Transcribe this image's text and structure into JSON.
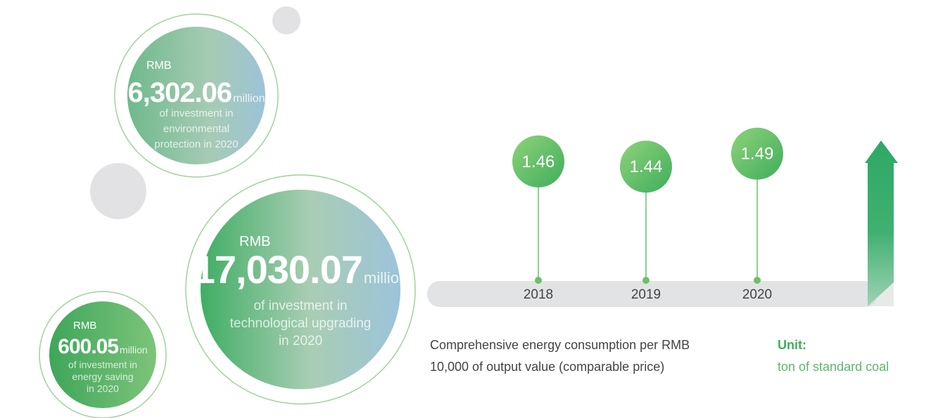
{
  "circles": [
    {
      "prefix": "RMB",
      "amount": "6,302.06",
      "unit": "million",
      "desc": [
        "of investment in",
        "environmental",
        "protection in 2020"
      ]
    },
    {
      "prefix": "RMB",
      "amount": "17,030.07",
      "unit": "million",
      "desc": [
        "of investment in",
        "technological upgrading",
        "in 2020"
      ]
    },
    {
      "prefix": "RMB",
      "amount": "600.05",
      "unit": "million",
      "desc": [
        "of investment in",
        "energy saving",
        "in 2020"
      ]
    }
  ],
  "chart_data": {
    "type": "lollipop",
    "categories": [
      "2018",
      "2019",
      "2020"
    ],
    "values": [
      1.46,
      1.44,
      1.49
    ],
    "color": "#6cc06a"
  },
  "caption": [
    "Comprehensive energy consumption per RMB",
    "10,000 of output value (comparable price)"
  ],
  "unit": {
    "label": "Unit:",
    "text": "ton of standard coal"
  }
}
